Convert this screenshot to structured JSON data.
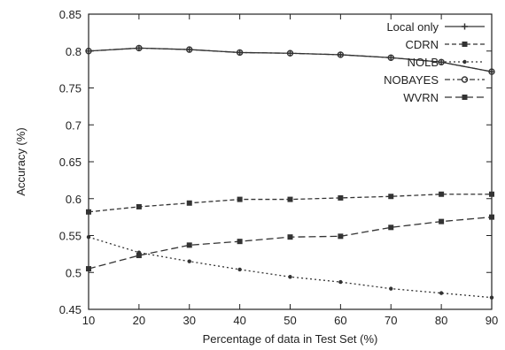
{
  "chart_data": {
    "type": "line",
    "title": "",
    "xlabel": "Percentage of data in Test Set (%)",
    "ylabel": "Accuracy (%)",
    "x": [
      10,
      20,
      30,
      40,
      50,
      60,
      70,
      80,
      90
    ],
    "xlim": [
      10,
      90
    ],
    "ylim": [
      0.45,
      0.85
    ],
    "xticks": [
      "10",
      "20",
      "30",
      "40",
      "50",
      "60",
      "70",
      "80",
      "90"
    ],
    "yticks": [
      "0.45",
      "0.5",
      "0.55",
      "0.6",
      "0.65",
      "0.7",
      "0.75",
      "0.8",
      "0.85"
    ],
    "grid": false,
    "legend_position": "top-right",
    "series": [
      {
        "name": "Local only",
        "values": [
          0.8,
          0.804,
          0.802,
          0.798,
          0.797,
          0.795,
          0.791,
          0.785,
          0.772
        ],
        "dash": "solid",
        "marker": "plus",
        "color": "#333333"
      },
      {
        "name": "CDRN",
        "values": [
          0.582,
          0.589,
          0.594,
          0.599,
          0.599,
          0.601,
          0.603,
          0.606,
          0.606
        ],
        "dash": "dash",
        "marker": "square",
        "color": "#333333"
      },
      {
        "name": "NOLB",
        "values": [
          0.548,
          0.527,
          0.515,
          0.504,
          0.494,
          0.487,
          0.478,
          0.472,
          0.466
        ],
        "dash": "dot",
        "marker": "dot",
        "color": "#333333"
      },
      {
        "name": "NOBAYES",
        "values": [
          0.8,
          0.804,
          0.802,
          0.798,
          0.797,
          0.795,
          0.791,
          0.785,
          0.772
        ],
        "dash": "dashdot",
        "marker": "circle",
        "color": "#333333"
      },
      {
        "name": "WVRN",
        "values": [
          0.505,
          0.523,
          0.537,
          0.542,
          0.548,
          0.549,
          0.561,
          0.569,
          0.575
        ],
        "dash": "longdash",
        "marker": "square",
        "color": "#333333"
      }
    ]
  }
}
